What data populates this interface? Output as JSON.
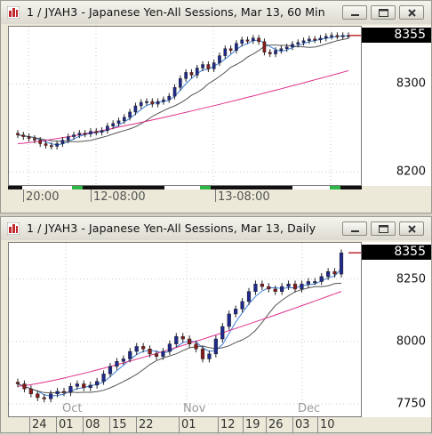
{
  "windows": [
    {
      "id": "hourly",
      "title": "1 / JYAH3 - Japanese Yen-All Sessions, Mar 13, 60 Min",
      "last_price": "8355",
      "price_labels": [
        {
          "text": "8300",
          "value": 8300
        },
        {
          "text": "8200",
          "value": 8200
        }
      ],
      "time_labels": [
        "20:00",
        "12-08:00",
        "13-08:00"
      ],
      "colors": {
        "up": "#1f2a8c",
        "down": "#8b1a1a",
        "ma_fast": "#3b7dd8",
        "ma_slow": "#555555",
        "ma_long": "#e0308a"
      },
      "chart_data": {
        "type": "candlestick",
        "ylim": [
          8185,
          8365
        ],
        "close_last": 8355,
        "series": [
          {
            "name": "price",
            "values": [
              8242,
              8240,
              8238,
              8236,
              8232,
              8230,
              8229,
              8232,
              8236,
              8240,
              8242,
              8244,
              8243,
              8246,
              8245,
              8247,
              8252,
              8255,
              8258,
              8262,
              8268,
              8275,
              8279,
              8280,
              8277,
              8280,
              8282,
              8286,
              8296,
              8306,
              8313,
              8310,
              8318,
              8322,
              8317,
              8324,
              8332,
              8340,
              8338,
              8346,
              8350,
              8349,
              8352,
              8348,
              8336,
              8334,
              8338,
              8340,
              8342,
              8345,
              8347,
              8349,
              8351,
              8350,
              8352,
              8354,
              8355,
              8354,
              8355,
              8355
            ]
          }
        ]
      }
    },
    {
      "id": "daily",
      "title": "1 / JYAH3 - Japanese Yen-All Sessions, Mar 13, Daily",
      "last_price": "8355",
      "price_labels": [
        {
          "text": "8250",
          "value": 8250
        },
        {
          "text": "8000",
          "value": 8000
        },
        {
          "text": "7750",
          "value": 7750
        }
      ],
      "time_labels": [
        "24",
        "01",
        "08",
        "15",
        "22",
        "01",
        "12",
        "19",
        "26",
        "03",
        "10"
      ],
      "month_labels": [
        "Oct",
        "Nov",
        "Dec"
      ],
      "colors": {
        "up": "#1f2a8c",
        "down": "#8b1a1a",
        "ma_fast": "#3b7dd8",
        "ma_slow": "#555555",
        "ma_long": "#e0308a"
      },
      "chart_data": {
        "type": "candlestick",
        "ylim": [
          7700,
          8395
        ],
        "close_last": 8355,
        "series": [
          {
            "name": "price",
            "values": [
              7830,
              7810,
              7790,
              7775,
              7770,
              7790,
              7800,
              7795,
              7820,
              7830,
              7815,
              7825,
              7840,
              7870,
              7900,
              7920,
              7930,
              7960,
              7980,
              7970,
              7950,
              7940,
              7960,
              7990,
              8020,
              8010,
              7990,
              7970,
              7930,
              7950,
              8010,
              8060,
              8110,
              8130,
              8160,
              8200,
              8230,
              8220,
              8210,
              8200,
              8220,
              8230,
              8210,
              8230,
              8240,
              8240,
              8260,
              8280,
              8270,
              8355
            ]
          }
        ]
      }
    }
  ]
}
